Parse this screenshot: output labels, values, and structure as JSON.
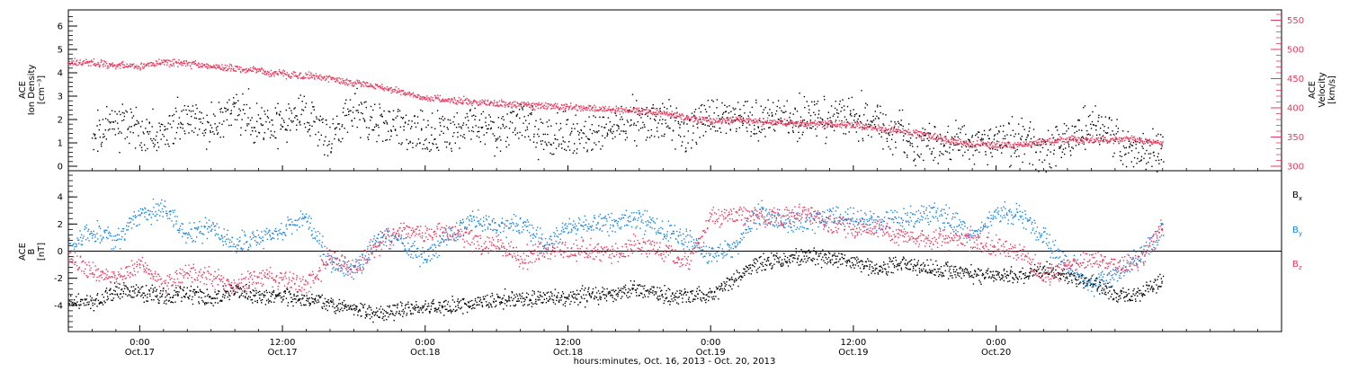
{
  "footer": "hours:minutes, Oct. 16, 2013 - Oct. 20, 2013",
  "chart_data": [
    {
      "type": "scatter",
      "panel": "top",
      "ylabel_left": [
        "ACE",
        "Ion Density",
        "[cm⁻³]"
      ],
      "ylabel_right": [
        "ACE",
        "Velocity",
        "[km/s]"
      ],
      "ylim_left": [
        0,
        6.5
      ],
      "ylim_right": [
        300,
        560
      ],
      "yticks_left": [
        "0",
        "1",
        "2",
        "3",
        "4",
        "5",
        "6"
      ],
      "yticks_right": [
        "300",
        "350",
        "400",
        "450",
        "500",
        "550"
      ],
      "xlim_hours": [
        -6,
        96
      ],
      "grid": false,
      "series": [
        {
          "key": "density",
          "axis": "left",
          "color": "#000000",
          "x": [
            -4,
            -2,
            0,
            2,
            4,
            6,
            8,
            10,
            12,
            14,
            16,
            18,
            20,
            22,
            24,
            26,
            28,
            30,
            32,
            34,
            36,
            38,
            39,
            40,
            42,
            44,
            46,
            48,
            50,
            52,
            54,
            56,
            58,
            60,
            62,
            64,
            66,
            68,
            70,
            72,
            74,
            76,
            78,
            80,
            82,
            84,
            86
          ],
          "y": [
            1.5,
            2.0,
            1.3,
            1.5,
            2.0,
            1.6,
            2.5,
            1.7,
            2.1,
            2.2,
            1.2,
            2.5,
            1.9,
            1.6,
            1.4,
            1.6,
            1.7,
            1.5,
            1.9,
            1.3,
            1.3,
            1.4,
            1.5,
            1.8,
            1.9,
            1.8,
            1.5,
            2.2,
            2.0,
            2.1,
            2.0,
            2.1,
            2.3,
            2.2,
            1.8,
            1.3,
            1.0,
            1.1,
            0.9,
            1.1,
            1.2,
            0.8,
            1.3,
            1.8,
            1.2,
            0.5,
            0.8
          ]
        },
        {
          "key": "velocity",
          "axis": "right",
          "color": "#e8385c",
          "x": [
            -6,
            -4,
            -2,
            0,
            2,
            4,
            6,
            8,
            10,
            12,
            14,
            16,
            18,
            20,
            22,
            24,
            26,
            28,
            30,
            32,
            34,
            36,
            38,
            40,
            42,
            44,
            46,
            48,
            50,
            52,
            54,
            56,
            58,
            60,
            62,
            64,
            66,
            68,
            70,
            72,
            74,
            76,
            78,
            80,
            82,
            84,
            86
          ],
          "y": [
            480,
            478,
            474,
            472,
            479,
            476,
            472,
            468,
            464,
            458,
            456,
            451,
            444,
            437,
            428,
            418,
            414,
            411,
            408,
            406,
            404,
            402,
            400,
            398,
            396,
            392,
            385,
            378,
            380,
            378,
            376,
            374,
            373,
            372,
            366,
            361,
            355,
            344,
            339,
            337,
            338,
            342,
            347,
            345,
            348,
            345,
            340
          ]
        }
      ]
    },
    {
      "type": "scatter",
      "panel": "bottom",
      "ylabel_left": [
        "ACE",
        "B",
        "[nT]"
      ],
      "ylim": [
        -5.8,
        5.8
      ],
      "yticks": [
        "-4",
        "-2",
        "0",
        "2",
        "4"
      ],
      "xlim_hours": [
        -6,
        96
      ],
      "grid": false,
      "zero_line": true,
      "series": [
        {
          "name": "Bx",
          "color": "#000000",
          "x": [
            -6,
            -4,
            -2,
            0,
            2,
            4,
            6,
            8,
            10,
            12,
            14,
            16,
            18,
            20,
            22,
            24,
            26,
            28,
            30,
            32,
            34,
            36,
            38,
            40,
            42,
            44,
            46,
            48,
            50,
            52,
            54,
            56,
            58,
            60,
            62,
            64,
            66,
            68,
            70,
            72,
            74,
            76,
            78,
            80,
            82,
            84,
            86
          ],
          "y": [
            -3.5,
            -3.8,
            -3.0,
            -2.8,
            -3.4,
            -3.0,
            -3.6,
            -2.8,
            -3.4,
            -3.3,
            -3.6,
            -3.8,
            -4.3,
            -4.6,
            -4.2,
            -4.1,
            -4.0,
            -3.9,
            -3.6,
            -3.5,
            -3.4,
            -3.4,
            -3.2,
            -3.0,
            -2.8,
            -3.2,
            -3.3,
            -3.3,
            -2.0,
            -0.8,
            -0.6,
            -0.3,
            -0.5,
            -0.8,
            -1.2,
            -0.8,
            -1.2,
            -1.4,
            -1.6,
            -1.8,
            -1.7,
            -1.3,
            -1.9,
            -2.2,
            -3.1,
            -3.2,
            -2.0
          ]
        },
        {
          "name": "By",
          "color": "#1a84dc",
          "x": [
            -6,
            -4,
            -2,
            0,
            2,
            4,
            6,
            8,
            10,
            12,
            14,
            16,
            18,
            20,
            22,
            24,
            26,
            28,
            30,
            32,
            34,
            36,
            38,
            40,
            42,
            44,
            46,
            48,
            50,
            52,
            54,
            56,
            58,
            60,
            62,
            64,
            66,
            68,
            70,
            72,
            74,
            76,
            78,
            80,
            82,
            84,
            86
          ],
          "y": [
            0.5,
            1.5,
            0.8,
            2.8,
            3.2,
            1.2,
            1.8,
            0.5,
            1.0,
            1.5,
            2.5,
            -0.8,
            -1.5,
            1.2,
            0.8,
            -0.5,
            1.2,
            2.5,
            1.8,
            2.2,
            0.5,
            1.8,
            2.2,
            2.0,
            2.5,
            1.5,
            1.0,
            -0.3,
            0.5,
            2.8,
            2.3,
            2.0,
            2.6,
            2.5,
            2.2,
            2.3,
            2.8,
            2.5,
            1.2,
            2.8,
            2.7,
            1.0,
            -1.0,
            -2.5,
            -1.8,
            -0.3,
            1.5
          ]
        },
        {
          "name": "Bz",
          "color": "#e8385c",
          "x": [
            -6,
            -4,
            -2,
            0,
            2,
            4,
            6,
            8,
            10,
            12,
            14,
            16,
            18,
            20,
            22,
            24,
            26,
            28,
            30,
            32,
            34,
            36,
            38,
            40,
            42,
            44,
            46,
            48,
            50,
            52,
            54,
            56,
            58,
            60,
            62,
            64,
            66,
            68,
            70,
            72,
            74,
            76,
            78,
            80,
            82,
            84,
            86
          ],
          "y": [
            -0.5,
            -1.5,
            -2.0,
            -1.0,
            -2.5,
            -1.5,
            -2.0,
            -2.5,
            -1.8,
            -2.0,
            -2.5,
            -0.5,
            -1.2,
            0.5,
            1.6,
            1.2,
            1.5,
            0.8,
            0.5,
            -0.5,
            0.0,
            0.2,
            0.0,
            0.0,
            0.5,
            0.0,
            -0.8,
            2.5,
            2.8,
            2.6,
            2.5,
            3.0,
            2.0,
            1.8,
            1.5,
            1.2,
            0.8,
            1.0,
            0.8,
            0.5,
            0.0,
            -1.8,
            -1.2,
            -0.5,
            -1.0,
            -0.8,
            2.0
          ]
        }
      ]
    }
  ],
  "x_axis": {
    "ticks": [
      {
        "hour": 0,
        "time": "0:00",
        "date": "Oct.17"
      },
      {
        "hour": 12,
        "time": "12:00",
        "date": "Oct.17"
      },
      {
        "hour": 24,
        "time": "0:00",
        "date": "Oct.18"
      },
      {
        "hour": 36,
        "time": "12:00",
        "date": "Oct.18"
      },
      {
        "hour": 48,
        "time": "0:00",
        "date": "Oct.19"
      },
      {
        "hour": 60,
        "time": "12:00",
        "date": "Oct.19"
      },
      {
        "hour": 72,
        "time": "0:00",
        "date": "Oct.20"
      }
    ]
  }
}
